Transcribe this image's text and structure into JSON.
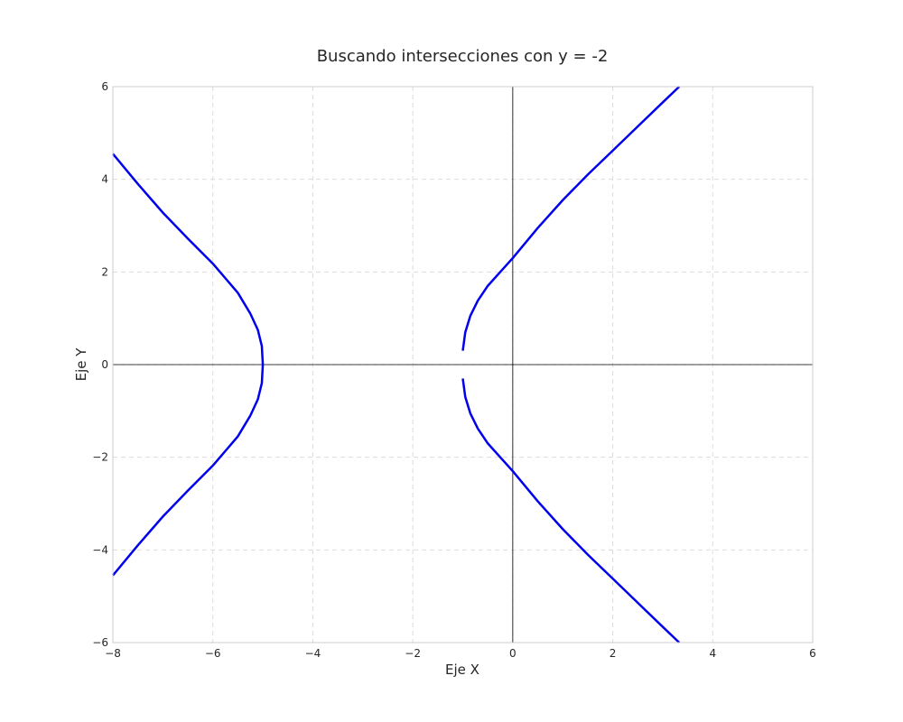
{
  "chart_data": {
    "type": "line",
    "title": "Buscando intersecciones con y = -2",
    "xlabel": "Eje X",
    "ylabel": "Eje Y",
    "xlim": [
      -8,
      6
    ],
    "ylim": [
      -6,
      6
    ],
    "xticks": [
      -8,
      -6,
      -4,
      -2,
      0,
      2,
      4,
      6
    ],
    "yticks": [
      -6,
      -4,
      -2,
      0,
      2,
      4,
      6
    ],
    "xtick_labels": [
      "−8",
      "−6",
      "−4",
      "−2",
      "0",
      "2",
      "4",
      "6"
    ],
    "ytick_labels": [
      "−6",
      "−4",
      "−2",
      "0",
      "2",
      "4",
      "6"
    ],
    "grid": true,
    "line_color": "#0000ee",
    "axis_line_color": "#000000",
    "series": [
      {
        "x": [
          -8.0,
          -7.5,
          -7.0,
          -6.5,
          -6.0,
          -5.5,
          -5.25,
          -5.1,
          -5.02,
          -5.0
        ],
        "y": [
          4.55,
          3.9,
          3.28,
          2.72,
          2.18,
          1.55,
          1.1,
          0.75,
          0.4,
          0.0
        ]
      },
      {
        "x": [
          -5.0,
          -5.02,
          -5.1,
          -5.25,
          -5.5,
          -6.0,
          -6.5,
          -7.0,
          -7.5,
          -8.0
        ],
        "y": [
          0.0,
          -0.4,
          -0.75,
          -1.1,
          -1.55,
          -2.18,
          -2.72,
          -3.28,
          -3.9,
          -4.55
        ]
      },
      {
        "x": [
          -1.0,
          -0.95,
          -0.85,
          -0.7,
          -0.5,
          -0.25,
          0.0,
          0.5,
          1.0,
          1.5,
          2.0,
          2.5,
          3.0,
          3.33
        ],
        "y": [
          0.3,
          0.7,
          1.05,
          1.38,
          1.7,
          2.0,
          2.3,
          2.95,
          3.55,
          4.1,
          4.62,
          5.14,
          5.66,
          6.0
        ]
      },
      {
        "x": [
          -1.0,
          -0.95,
          -0.85,
          -0.7,
          -0.5,
          -0.25,
          0.0,
          0.5,
          1.0,
          1.5,
          2.0,
          2.5,
          3.0,
          3.33
        ],
        "y": [
          -0.3,
          -0.7,
          -1.05,
          -1.38,
          -1.7,
          -2.0,
          -2.3,
          -2.95,
          -3.55,
          -4.1,
          -4.62,
          -5.14,
          -5.66,
          -6.0
        ]
      }
    ]
  }
}
